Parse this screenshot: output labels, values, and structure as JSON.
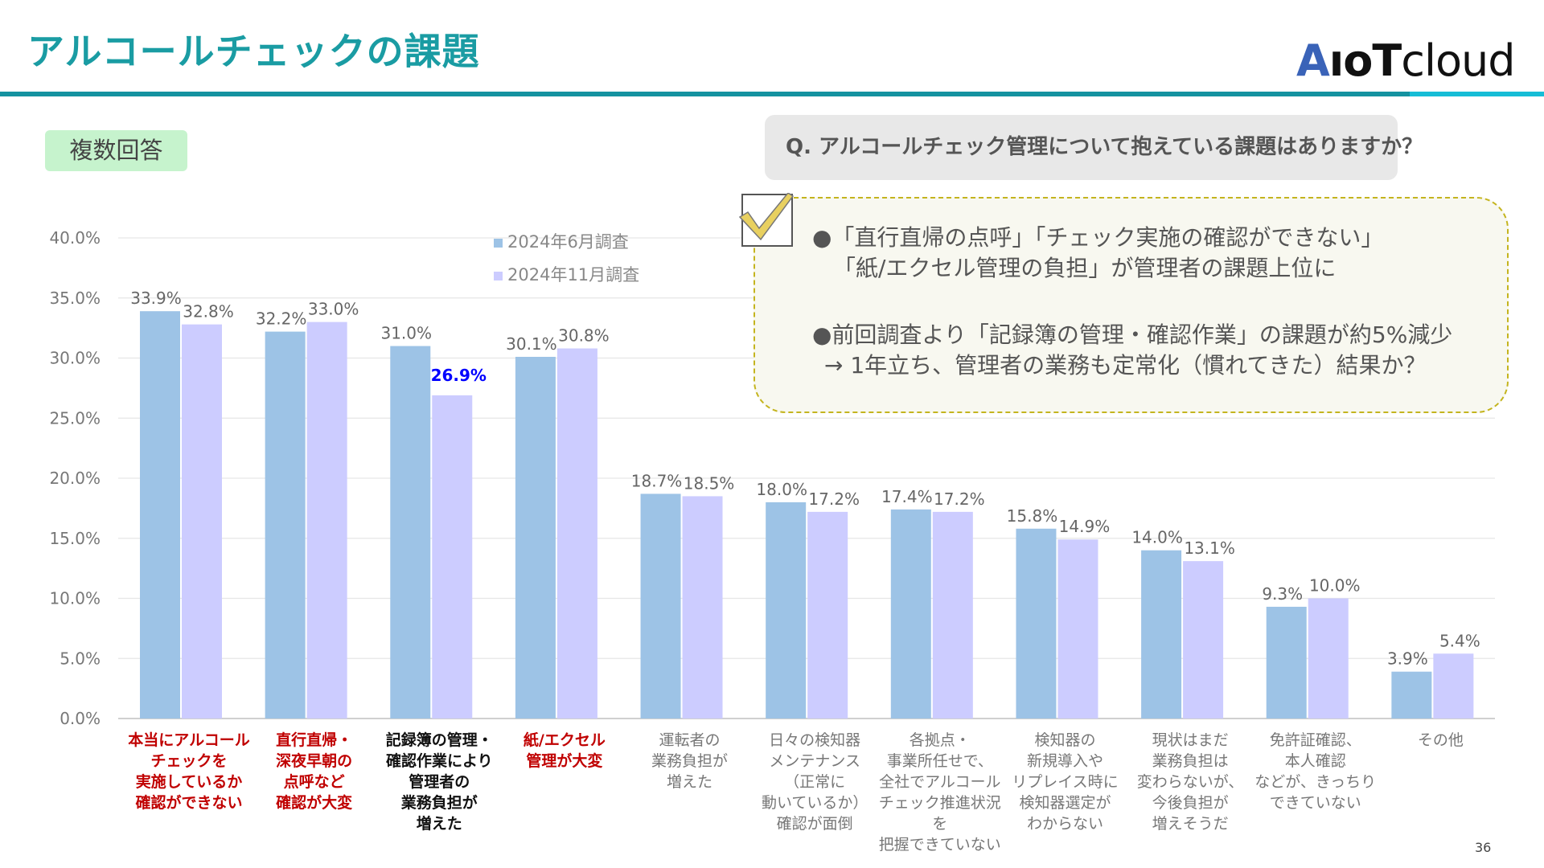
{
  "header": {
    "title": "アルコールチェックの課題",
    "logo": "AIoTcloud"
  },
  "badge": "複数回答",
  "question": "Q. アルコールチェック管理について抱えている課題はありますか？",
  "callout": {
    "lines": [
      "●「直行直帰の点呼」「チェック実施の確認ができない」",
      "「紙/エクセル管理の負担」が管理者の課題上位に",
      "●前回調査より「記録簿の管理・確認作業」の課題が約5%減少",
      "→ 1年立ち、管理者の業務も定常化（慣れてきた）結果か？"
    ],
    "icon": "checkmark-box-icon"
  },
  "page_number": "36",
  "colors": {
    "title": "#1a9ca3",
    "series1": "#9dc3e6",
    "series2": "#ccccff",
    "highlight_label": "#0000ff",
    "emphasis_category": "#c00000"
  },
  "chart_data": {
    "type": "bar",
    "ylim": [
      0,
      40
    ],
    "yticks": [
      "0.0%",
      "5.0%",
      "10.0%",
      "15.0%",
      "20.0%",
      "25.0%",
      "30.0%",
      "35.0%",
      "40.0%"
    ],
    "grid": true,
    "legend_position": "top-left",
    "categories": [
      {
        "label": [
          "本当にアルコール",
          "チェックを",
          "実施しているか",
          "確認ができない"
        ],
        "style": "red"
      },
      {
        "label": [
          "直行直帰・",
          "深夜早朝の",
          "点呼など",
          "確認が大変"
        ],
        "style": "red"
      },
      {
        "label": [
          "記録簿の管理・",
          "確認作業により",
          "管理者の",
          "業務負担が",
          "増えた"
        ],
        "style": "black"
      },
      {
        "label": [
          "紙/エクセル",
          "管理が大変"
        ],
        "style": "red"
      },
      {
        "label": [
          "運転者の",
          "業務負担が",
          "増えた"
        ],
        "style": "normal"
      },
      {
        "label": [
          "日々の検知器",
          "メンテナンス",
          "（正常に",
          "動いているか）",
          "確認が面倒"
        ],
        "style": "normal"
      },
      {
        "label": [
          "各拠点・",
          "事業所任せで、",
          "全社でアルコール",
          "チェック推進状況を",
          "把握できていない"
        ],
        "style": "normal"
      },
      {
        "label": [
          "検知器の",
          "新規導入や",
          "リプレイス時に",
          "検知器選定が",
          "わからない"
        ],
        "style": "normal"
      },
      {
        "label": [
          "現状はまだ",
          "業務負担は",
          "変わらないが、",
          "今後負担が",
          "増えそうだ"
        ],
        "style": "normal"
      },
      {
        "label": [
          "免許証確認、",
          "本人確認",
          "などが、きっちり",
          "できていない"
        ],
        "style": "normal"
      },
      {
        "label": [
          "その他"
        ],
        "style": "normal"
      }
    ],
    "series": [
      {
        "name": "2024年6月調査",
        "values": [
          33.9,
          32.2,
          31.0,
          30.1,
          18.7,
          18.0,
          17.4,
          15.8,
          14.0,
          9.3,
          3.9
        ],
        "labels": [
          "33.9%",
          "32.2%",
          "31.0%",
          "30.1%",
          "18.7%",
          "18.0%",
          "17.4%",
          "15.8%",
          "14.0%",
          "9.3%",
          "3.9%"
        ]
      },
      {
        "name": "2024年11月調査",
        "values": [
          32.8,
          33.0,
          26.9,
          30.8,
          18.5,
          17.2,
          17.2,
          14.9,
          13.1,
          10.0,
          5.4
        ],
        "labels": [
          "32.8%",
          "33.0%",
          "26.9%",
          "30.8%",
          "18.5%",
          "17.2%",
          "17.2%",
          "14.9%",
          "13.1%",
          "10.0%",
          "5.4%"
        ],
        "highlight_index": 2
      }
    ]
  }
}
